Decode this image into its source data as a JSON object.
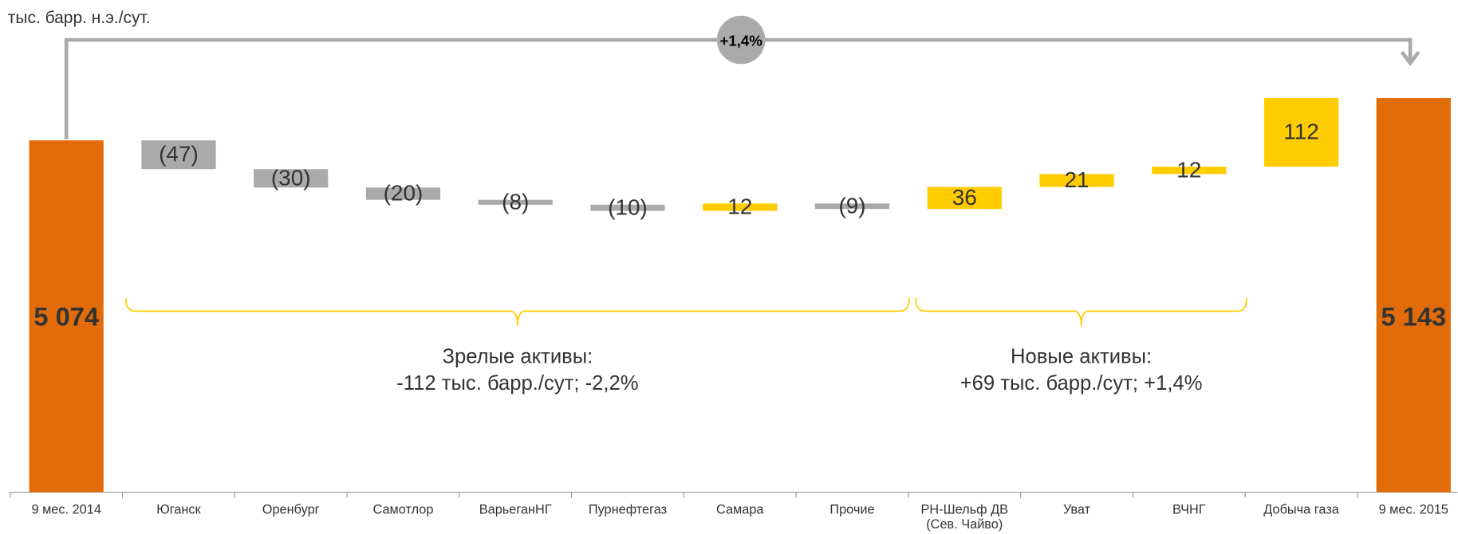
{
  "chart_data": {
    "type": "waterfall",
    "unit_label": "тыс. барр. н.э./сут.",
    "categories": [
      "9 мес. 2014",
      "Юганск",
      "Оренбург",
      "Самотлор",
      "ВарьеганНГ",
      "Пурнефтегаз",
      "Самара",
      "Прочие",
      "РН-Шельф ДВ (Сев. Чайво)",
      "Уват",
      "ВЧНГ",
      "Добыча газа",
      "9 мес. 2015"
    ],
    "values": [
      5074,
      -47,
      -30,
      -20,
      -8,
      -10,
      12,
      -9,
      36,
      21,
      12,
      112,
      5143
    ],
    "value_labels": [
      "5 074",
      "(47)",
      "(30)",
      "(20)",
      "(8)",
      "(10)",
      "12",
      "(9)",
      "36",
      "21",
      "12",
      "112",
      "5 143"
    ],
    "colors": {
      "total": "#e36c0a",
      "decrease": "#aaaaaa",
      "increase": "#ffcc00"
    },
    "ylim": [
      4500,
      5256
    ],
    "change_label": "+1,4%",
    "groups": [
      {
        "title": "Зрелые активы:",
        "subtitle": "-112 тыс. барр./сут; -2,2%"
      },
      {
        "title": "Новые активы:",
        "subtitle": "+69 тыс. барр./сут; +1,4%"
      }
    ]
  }
}
